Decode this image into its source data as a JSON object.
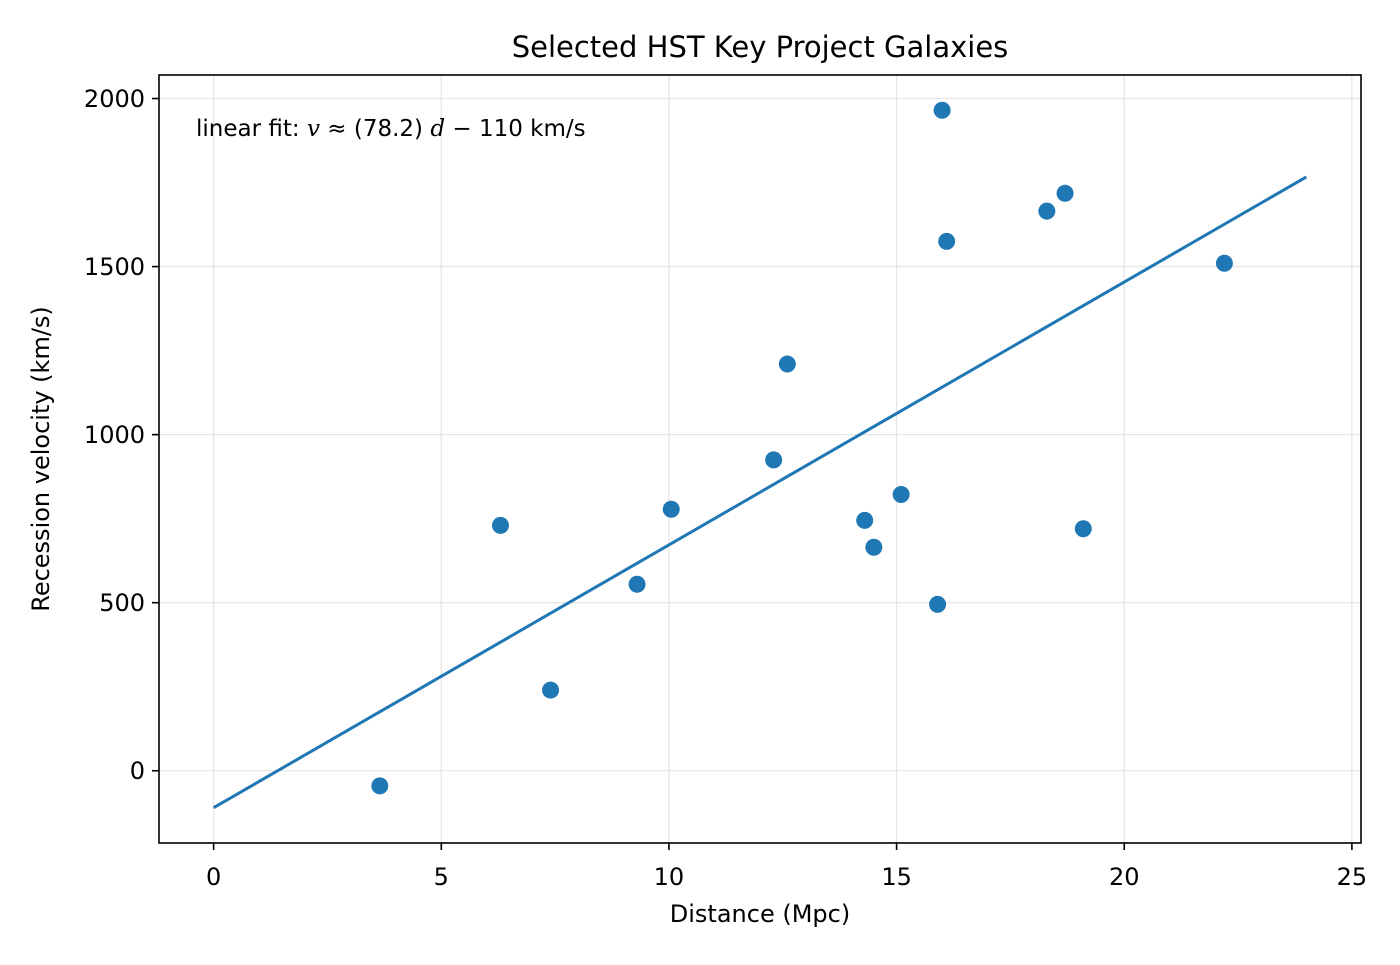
{
  "chart_data": {
    "type": "scatter",
    "title": "Selected HST Key Project Galaxies",
    "xlabel": "Distance (Mpc)",
    "ylabel": "Recession velocity (km/s)",
    "xlim": [
      -1.2,
      25.2
    ],
    "ylim": [
      -215,
      2070
    ],
    "xticks": [
      0,
      5,
      10,
      15,
      20,
      25
    ],
    "yticks": [
      0,
      500,
      1000,
      1500,
      2000
    ],
    "grid": true,
    "annotation": {
      "prefix": "linear fit: ",
      "v": "v",
      "approx": " ≈ ",
      "coef": "(78.2)",
      "d": "d",
      "rest": " − 110 km/s"
    },
    "fit_line": {
      "slope": 78.2,
      "intercept": -110,
      "x_range": [
        0,
        24
      ]
    },
    "series": [
      {
        "points": [
          {
            "x": 3.65,
            "y": -45
          },
          {
            "x": 6.3,
            "y": 730
          },
          {
            "x": 7.4,
            "y": 240
          },
          {
            "x": 9.3,
            "y": 555
          },
          {
            "x": 10.05,
            "y": 778
          },
          {
            "x": 12.3,
            "y": 925
          },
          {
            "x": 12.6,
            "y": 1210
          },
          {
            "x": 14.3,
            "y": 745
          },
          {
            "x": 14.5,
            "y": 665
          },
          {
            "x": 15.1,
            "y": 822
          },
          {
            "x": 15.9,
            "y": 495
          },
          {
            "x": 16.0,
            "y": 1965
          },
          {
            "x": 16.1,
            "y": 1575
          },
          {
            "x": 18.3,
            "y": 1665
          },
          {
            "x": 18.7,
            "y": 1718
          },
          {
            "x": 19.1,
            "y": 720
          },
          {
            "x": 22.2,
            "y": 1510
          }
        ]
      }
    ],
    "colors": {
      "series": "#1f77b4",
      "grid": "#e6e6e6",
      "axes": "#000000"
    }
  }
}
